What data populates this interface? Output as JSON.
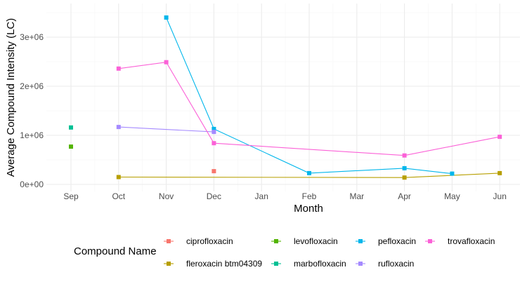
{
  "chart_data": {
    "type": "line",
    "title": "",
    "xlabel": "Month",
    "ylabel": "Average Compound Intensity (LC)",
    "categories": [
      "Sep",
      "Oct",
      "Nov",
      "Dec",
      "Jan",
      "Feb",
      "Mar",
      "Apr",
      "May",
      "Jun"
    ],
    "ylim": [
      0,
      3500000
    ],
    "yticks": [
      0,
      1000000,
      2000000,
      3000000
    ],
    "ytick_labels": [
      "0e+00",
      "1e+06",
      "2e+06",
      "3e+06"
    ],
    "grid": true,
    "legend": {
      "title": "Compound Name",
      "placement": "bottom",
      "columns": [
        [
          "ciprofloxacin",
          "fleroxacin btm04309"
        ],
        [
          "levofloxacin",
          "marbofloxacin"
        ],
        [
          "pefloxacin",
          "rufloxacin"
        ],
        [
          "trovafloxacin"
        ]
      ]
    },
    "series": [
      {
        "name": "ciprofloxacin",
        "color": "#F8766D",
        "points": [
          {
            "x": "Dec",
            "y": 270000
          }
        ]
      },
      {
        "name": "fleroxacin btm04309",
        "color": "#B79F00",
        "points": [
          {
            "x": "Oct",
            "y": 150000
          },
          {
            "x": "Apr",
            "y": 140000
          },
          {
            "x": "Jun",
            "y": 230000
          }
        ]
      },
      {
        "name": "levofloxacin",
        "color": "#53B400",
        "points": [
          {
            "x": "Sep",
            "y": 770000
          }
        ]
      },
      {
        "name": "marbofloxacin",
        "color": "#00C094",
        "points": [
          {
            "x": "Sep",
            "y": 1160000
          }
        ]
      },
      {
        "name": "pefloxacin",
        "color": "#00B6EB",
        "points": [
          {
            "x": "Nov",
            "y": 3400000
          },
          {
            "x": "Dec",
            "y": 1130000
          },
          {
            "x": "Feb",
            "y": 230000
          },
          {
            "x": "Apr",
            "y": 330000
          },
          {
            "x": "May",
            "y": 220000
          }
        ]
      },
      {
        "name": "rufloxacin",
        "color": "#A58AFF",
        "points": [
          {
            "x": "Oct",
            "y": 1170000
          },
          {
            "x": "Dec",
            "y": 1070000
          }
        ]
      },
      {
        "name": "trovafloxacin",
        "color": "#FB61D7",
        "points": [
          {
            "x": "Oct",
            "y": 2360000
          },
          {
            "x": "Nov",
            "y": 2490000
          },
          {
            "x": "Dec",
            "y": 840000
          },
          {
            "x": "Apr",
            "y": 590000
          },
          {
            "x": "Jun",
            "y": 970000
          }
        ]
      }
    ]
  }
}
